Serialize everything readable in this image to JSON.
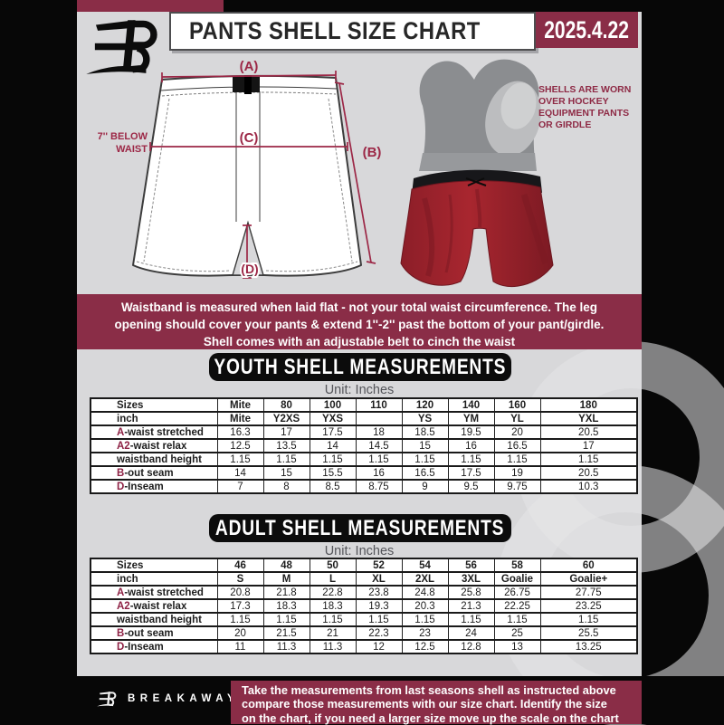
{
  "header": {
    "title": "PANTS SHELL SIZE CHART",
    "date": "2025.4.22"
  },
  "diagram": {
    "label_a": "(A)",
    "label_b": "(B)",
    "label_c": "(C)",
    "label_d": "(D)",
    "waist_note_line1": "7'' BELOW",
    "waist_note_line2": "WAIST",
    "photo_note_lines": [
      "SHELLS ARE WORN",
      "OVER HOCKEY",
      "EQUIPMENT PANTS",
      "OR GIRDLE"
    ]
  },
  "notice": {
    "lines": [
      "Waistband is measured when laid flat - not your total waist circumference. The leg",
      "opening should cover your pants & extend 1''-2'' past the bottom of your pant/girdle.",
      "Shell comes with an adjustable belt to cinch the waist"
    ]
  },
  "youth": {
    "heading": "YOUTH SHELL MEASUREMENTS",
    "unit": "Unit: Inches",
    "rows": [
      {
        "prefix": "",
        "label": "Sizes",
        "bold": true,
        "values": [
          "Mite",
          "80",
          "100",
          "110",
          "120",
          "140",
          "160",
          "180"
        ]
      },
      {
        "prefix": "",
        "label": "inch",
        "bold": true,
        "values": [
          "Mite",
          "Y2XS",
          "YXS",
          "",
          "YS",
          "YM",
          "YL",
          "YXL"
        ]
      },
      {
        "prefix": "A",
        "label": "-waist stretched",
        "values": [
          "16.3",
          "17",
          "17.5",
          "18",
          "18.5",
          "19.5",
          "20",
          "20.5"
        ]
      },
      {
        "prefix": "A2",
        "label": "-waist relax",
        "values": [
          "12.5",
          "13.5",
          "14",
          "14.5",
          "15",
          "16",
          "16.5",
          "17"
        ]
      },
      {
        "prefix": "",
        "label": "waistband height",
        "values": [
          "1.15",
          "1.15",
          "1.15",
          "1.15",
          "1.15",
          "1.15",
          "1.15",
          "1.15"
        ]
      },
      {
        "prefix": "B",
        "label": "-out seam",
        "values": [
          "14",
          "15",
          "15.5",
          "16",
          "16.5",
          "17.5",
          "19",
          "20.5"
        ]
      },
      {
        "prefix": "D",
        "label": "-Inseam",
        "values": [
          "7",
          "8",
          "8.5",
          "8.75",
          "9",
          "9.5",
          "9.75",
          "10.3"
        ]
      }
    ]
  },
  "adult": {
    "heading": "ADULT SHELL MEASUREMENTS",
    "unit": "Unit: Inches",
    "rows": [
      {
        "prefix": "",
        "label": "Sizes",
        "bold": true,
        "values": [
          "46",
          "48",
          "50",
          "52",
          "54",
          "56",
          "58",
          "60"
        ]
      },
      {
        "prefix": "",
        "label": "inch",
        "bold": true,
        "values": [
          "S",
          "M",
          "L",
          "XL",
          "2XL",
          "3XL",
          "Goalie",
          "Goalie+"
        ]
      },
      {
        "prefix": "A",
        "label": "-waist stretched",
        "values": [
          "20.8",
          "21.8",
          "22.8",
          "23.8",
          "24.8",
          "25.8",
          "26.75",
          "27.75"
        ]
      },
      {
        "prefix": "A2",
        "label": "-waist relax",
        "values": [
          "17.3",
          "18.3",
          "18.3",
          "19.3",
          "20.3",
          "21.3",
          "22.25",
          "23.25"
        ]
      },
      {
        "prefix": "",
        "label": "waistband height",
        "values": [
          "1.15",
          "1.15",
          "1.15",
          "1.15",
          "1.15",
          "1.15",
          "1.15",
          "1.15"
        ]
      },
      {
        "prefix": "B",
        "label": "-out seam",
        "values": [
          "20",
          "21.5",
          "21",
          "22.3",
          "23",
          "24",
          "25",
          "25.5"
        ]
      },
      {
        "prefix": "D",
        "label": "-Inseam",
        "values": [
          "11",
          "11.3",
          "11.3",
          "12",
          "12.5",
          "12.8",
          "13",
          "13.25"
        ]
      }
    ]
  },
  "footer": {
    "brand": "BREAKAWAY",
    "lines": [
      "Take the measurements from last seasons shell as instructed above",
      "compare those measurements  with our size chart. Identify the size",
      "on the chart, if you need a larger size move up the scale on the chart"
    ]
  },
  "colors": {
    "maroon": "#8a2d47",
    "diagram_accent": "#9c2746",
    "prefix_red": "#8e2144",
    "flyer_bg": "#d8d8da",
    "page_bg": "#070707",
    "pants_red": "#a2242e"
  }
}
